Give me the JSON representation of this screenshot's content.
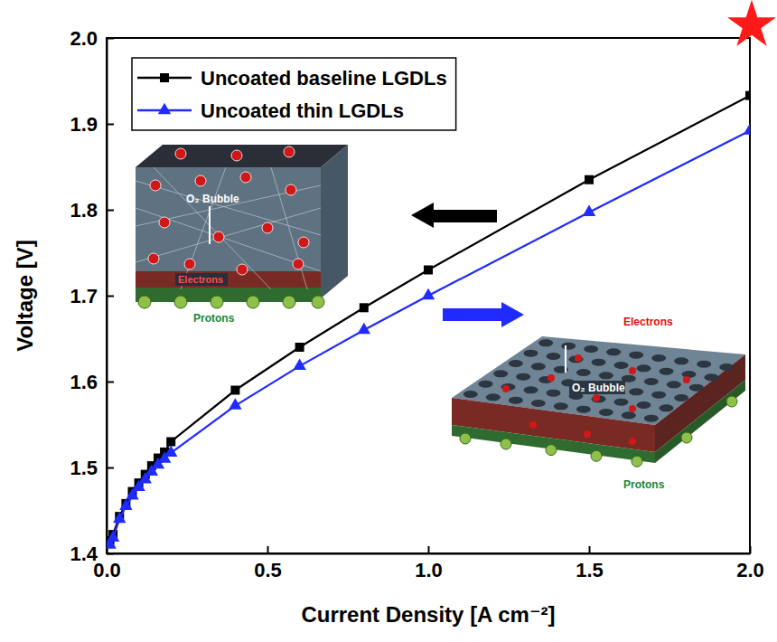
{
  "chart_data": {
    "type": "line",
    "x_label": "Current Density [A cm⁻²]",
    "y_label": "Voltage [V]",
    "x": [
      0.01,
      0.02,
      0.04,
      0.06,
      0.08,
      0.1,
      0.12,
      0.14,
      0.16,
      0.18,
      0.2,
      0.4,
      0.6,
      0.8,
      1.0,
      1.5,
      2.0
    ],
    "series": [
      {
        "name": "Uncoated baseline LGDLs",
        "color": "#000000",
        "marker": "square",
        "line_style": "solid",
        "values": [
          1.415,
          1.422,
          1.443,
          1.458,
          1.472,
          1.482,
          1.492,
          1.502,
          1.511,
          1.518,
          1.53,
          1.59,
          1.64,
          1.686,
          1.73,
          1.835,
          1.933
        ]
      },
      {
        "name": "Uncoated thin LGDLs",
        "color": "#1f2bff",
        "marker": "triangle",
        "line_style": "solid",
        "values": [
          1.41,
          1.418,
          1.44,
          1.455,
          1.467,
          1.477,
          1.486,
          1.495,
          1.503,
          1.51,
          1.517,
          1.572,
          1.618,
          1.66,
          1.7,
          1.797,
          1.892
        ]
      }
    ],
    "xlim": [
      0,
      2.0
    ],
    "ylim": [
      1.4,
      2.0
    ],
    "xticks": [
      {
        "value": 0,
        "label": "0.0"
      },
      0.5,
      {
        "value": 1,
        "label": "1.0"
      },
      1.5,
      {
        "value": 2,
        "label": "2.0"
      }
    ],
    "yticks": [
      1.4,
      1.5,
      1.6,
      1.7,
      1.8,
      1.9,
      {
        "value": 2,
        "label": "2.0"
      }
    ],
    "grid": false,
    "legend": "top-left",
    "annotations": [
      "O₂ Bubble",
      "Electrons",
      "Protons",
      "O₂ Bubble",
      "Electrons",
      "Protons"
    ]
  }
}
